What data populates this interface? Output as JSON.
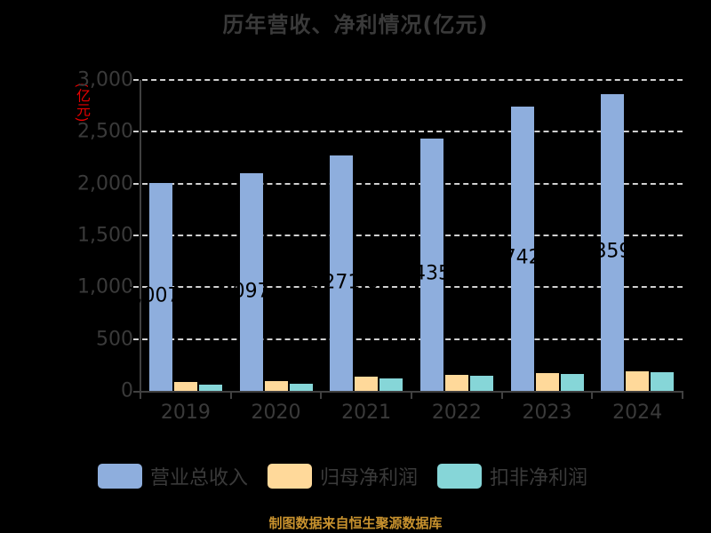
{
  "title": "历年营收、净利情况(亿元)",
  "y_unit": "(亿元)",
  "footer": "制图数据来自恒生聚源数据库",
  "colors": {
    "revenue": "#8eaedd",
    "net_profit": "#ffd99a",
    "deducted_net_profit": "#86d6d8",
    "footer": "#c8922e"
  },
  "legend": [
    {
      "label": "营业总收入",
      "color": "#8eaedd"
    },
    {
      "label": "归母净利润",
      "color": "#ffd99a"
    },
    {
      "label": "扣非净利润",
      "color": "#86d6d8"
    }
  ],
  "y_ticks": [
    "0",
    "500",
    "1,000",
    "1,500",
    "2,000",
    "2,500",
    "3,000"
  ],
  "data_labels": [
    "2,007.x",
    "2,097.2",
    "2,271.0",
    "2,435.7",
    "2,742.0",
    "2,859.8"
  ],
  "chart_data": {
    "type": "bar",
    "title": "历年营收、净利情况(亿元)",
    "xlabel": "",
    "ylabel": "(亿元)",
    "ylim": [
      0,
      3000
    ],
    "yticks": [
      0,
      500,
      1000,
      1500,
      2000,
      2500,
      3000
    ],
    "grid": true,
    "legend_position": "bottom",
    "categories": [
      "2019",
      "2020",
      "2021",
      "2022",
      "2023",
      "2024"
    ],
    "series": [
      {
        "name": "营业总收入",
        "values": [
          2007,
          2097.2,
          2271.0,
          2435.7,
          2742.0,
          2859.8
        ]
      },
      {
        "name": "归母净利润",
        "values": [
          86,
          94,
          137,
          154,
          171,
          189
        ]
      },
      {
        "name": "扣非净利润",
        "values": [
          60,
          69,
          120,
          146,
          163,
          180
        ]
      }
    ]
  }
}
